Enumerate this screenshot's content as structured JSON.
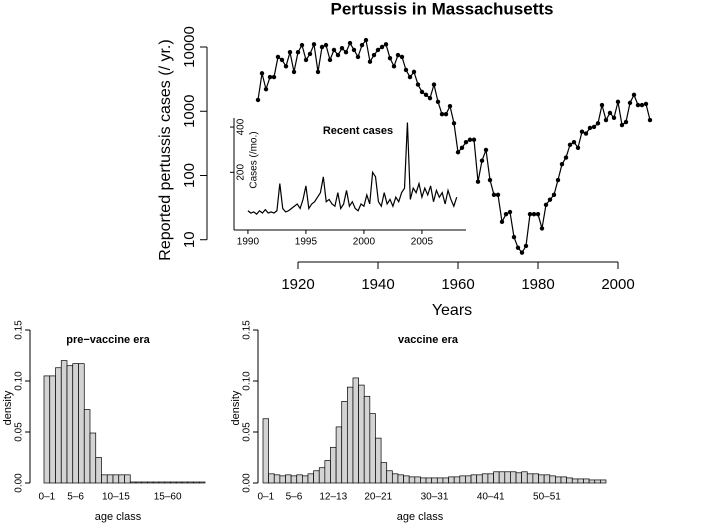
{
  "chart_data": [
    {
      "type": "line",
      "title": "Pertussis in Massachusetts",
      "xlabel": "Years",
      "ylabel": "Reported pertussis cases (/ yr.)",
      "x": [
        1910,
        1911,
        1912,
        1913,
        1914,
        1915,
        1916,
        1917,
        1918,
        1919,
        1920,
        1921,
        1922,
        1923,
        1924,
        1925,
        1926,
        1927,
        1928,
        1929,
        1930,
        1931,
        1932,
        1933,
        1934,
        1935,
        1936,
        1937,
        1938,
        1939,
        1940,
        1941,
        1942,
        1943,
        1944,
        1945,
        1946,
        1947,
        1948,
        1949,
        1950,
        1951,
        1952,
        1953,
        1954,
        1955,
        1956,
        1957,
        1958,
        1959,
        1960,
        1961,
        1962,
        1963,
        1964,
        1965,
        1966,
        1967,
        1968,
        1969,
        1970,
        1971,
        1972,
        1973,
        1974,
        1975,
        1976,
        1977,
        1978,
        1979,
        1980,
        1981,
        1982,
        1983,
        1984,
        1985,
        1986,
        1987,
        1988,
        1989,
        1990,
        1991,
        1992,
        1993,
        1994,
        1995,
        1996,
        1997,
        1998,
        1999,
        2000,
        2001,
        2002,
        2003,
        2004,
        2005,
        2006,
        2007,
        2008
      ],
      "values": [
        1500,
        3900,
        2200,
        3400,
        3400,
        7000,
        6300,
        5000,
        8300,
        4100,
        8300,
        10700,
        6300,
        7800,
        11000,
        4100,
        10000,
        10700,
        6300,
        9000,
        7500,
        9600,
        8300,
        11500,
        9000,
        7000,
        10700,
        12800,
        5900,
        7500,
        9000,
        10000,
        11000,
        6700,
        5000,
        7500,
        7000,
        4400,
        3400,
        4100,
        2600,
        2000,
        1800,
        1600,
        2600,
        1400,
        900,
        900,
        1200,
        650,
        230,
        270,
        330,
        360,
        360,
        80,
        170,
        250,
        85,
        50,
        50,
        19,
        25,
        27,
        11,
        7.5,
        6.3,
        8,
        25,
        25,
        25,
        15,
        35,
        42,
        50,
        85,
        150,
        190,
        300,
        330,
        270,
        480,
        450,
        550,
        570,
        650,
        1250,
        730,
        940,
        790,
        1400,
        610,
        680,
        1350,
        1800,
        1250,
        1250,
        1300,
        730
      ],
      "color": "#000000",
      "markers": true,
      "log_scale": true,
      "xlim": [
        1897,
        2020
      ],
      "ylim": [
        4.5,
        18400
      ],
      "xticks": [
        1920,
        1940,
        1960,
        1980,
        2000
      ],
      "yticks": [
        10,
        100,
        1000,
        10000
      ]
    },
    {
      "type": "line",
      "title": "Recent cases",
      "ylabel": "Cases (/mo.)",
      "x": [
        1990,
        1990.25,
        1990.5,
        1990.75,
        1991,
        1991.25,
        1991.5,
        1991.75,
        1992,
        1992.25,
        1992.5,
        1992.75,
        1993,
        1993.25,
        1993.5,
        1993.75,
        1994,
        1994.25,
        1994.5,
        1994.75,
        1995,
        1995.25,
        1995.5,
        1995.75,
        1996,
        1996.25,
        1996.5,
        1996.75,
        1997,
        1997.25,
        1997.5,
        1997.75,
        1998,
        1998.25,
        1998.5,
        1998.75,
        1999,
        1999.25,
        1999.5,
        1999.75,
        2000,
        2000.25,
        2000.5,
        2000.75,
        2001,
        2001.25,
        2001.5,
        2001.75,
        2002,
        2002.25,
        2002.5,
        2002.75,
        2003,
        2003.25,
        2003.5,
        2003.75,
        2004,
        2004.25,
        2004.5,
        2004.75,
        2005,
        2005.25,
        2005.5,
        2005.75,
        2006,
        2006.25,
        2006.5,
        2006.75,
        2007,
        2007.25,
        2007.5,
        2007.75,
        2008
      ],
      "values": [
        30,
        20,
        25,
        15,
        30,
        20,
        35,
        20,
        25,
        20,
        30,
        150,
        40,
        25,
        30,
        40,
        50,
        60,
        40,
        80,
        140,
        40,
        60,
        70,
        90,
        110,
        180,
        70,
        80,
        60,
        50,
        110,
        40,
        60,
        120,
        50,
        70,
        40,
        30,
        60,
        50,
        100,
        60,
        200,
        180,
        70,
        50,
        110,
        60,
        80,
        50,
        90,
        70,
        110,
        130,
        420,
        80,
        130,
        110,
        150,
        90,
        130,
        100,
        140,
        70,
        120,
        90,
        110,
        60,
        120,
        80,
        50,
        90
      ],
      "color": "#000000",
      "markers": false,
      "log_scale": false,
      "xlim": [
        1988.8,
        2008.8
      ],
      "ylim": [
        -55,
        440
      ],
      "xticks": [
        1990,
        1995,
        2000,
        2005
      ],
      "yticks": [
        200,
        400
      ]
    },
    {
      "type": "bar",
      "title": "pre−vaccine era",
      "xlabel": "age class",
      "ylabel": "density",
      "categories": [
        "0–1",
        null,
        null,
        null,
        null,
        "5–6",
        null,
        null,
        null,
        null,
        null,
        null,
        "10–15",
        null,
        null,
        null,
        null,
        null,
        null,
        null,
        null,
        "15–60",
        null,
        null,
        null,
        null,
        null,
        null
      ],
      "values": [
        0.105,
        0.105,
        0.113,
        0.12,
        0.115,
        0.117,
        0.117,
        0.072,
        0.049,
        0.025,
        0.008,
        0.008,
        0.008,
        0.008,
        0.008,
        0.001,
        0.001,
        0.001,
        0.001,
        0.001,
        0.001,
        0.001,
        0.001,
        0.001,
        0.001,
        0.001,
        0.001,
        0.001
      ],
      "color": "#d3d3d3",
      "log_scale": false,
      "ylim": [
        0,
        0.15
      ],
      "yticks": [
        {
          "value": 0,
          "label": "0.00"
        },
        {
          "value": 0.05,
          "label": "0.05"
        },
        {
          "value": 0.1,
          "label": "0.10"
        },
        {
          "value": 0.15,
          "label": "0.15"
        }
      ]
    },
    {
      "type": "bar",
      "title": "vaccine era",
      "xlabel": "age class",
      "ylabel": "density",
      "categories": [
        "0–1",
        null,
        null,
        null,
        null,
        "5–6",
        null,
        null,
        null,
        null,
        null,
        null,
        "12–13",
        null,
        null,
        null,
        null,
        null,
        null,
        null,
        "20–21",
        null,
        null,
        null,
        null,
        null,
        null,
        null,
        null,
        null,
        "30–31",
        null,
        null,
        null,
        null,
        null,
        null,
        null,
        null,
        null,
        "40–41",
        null,
        null,
        null,
        null,
        null,
        null,
        null,
        null,
        null,
        "50–51",
        null,
        null,
        null,
        null,
        null,
        null,
        null,
        null,
        null,
        null
      ],
      "values": [
        0.063,
        0.009,
        0.008,
        0.007,
        0.008,
        0.007,
        0.008,
        0.007,
        0.009,
        0.012,
        0.015,
        0.022,
        0.035,
        0.055,
        0.08,
        0.094,
        0.103,
        0.096,
        0.085,
        0.068,
        0.044,
        0.02,
        0.012,
        0.009,
        0.008,
        0.007,
        0.006,
        0.006,
        0.005,
        0.005,
        0.005,
        0.005,
        0.005,
        0.006,
        0.006,
        0.007,
        0.007,
        0.008,
        0.008,
        0.009,
        0.009,
        0.011,
        0.011,
        0.011,
        0.011,
        0.01,
        0.011,
        0.009,
        0.009,
        0.008,
        0.008,
        0.007,
        0.006,
        0.006,
        0.005,
        0.004,
        0.004,
        0.004,
        0.003,
        0.003,
        0.003
      ],
      "color": "#d3d3d3",
      "log_scale": false,
      "ylim": [
        0,
        0.15
      ],
      "yticks": [
        {
          "value": 0,
          "label": "0.00"
        },
        {
          "value": 0.05,
          "label": "0.05"
        },
        {
          "value": 0.1,
          "label": "0.10"
        },
        {
          "value": 0.15,
          "label": "0.15"
        }
      ]
    }
  ]
}
